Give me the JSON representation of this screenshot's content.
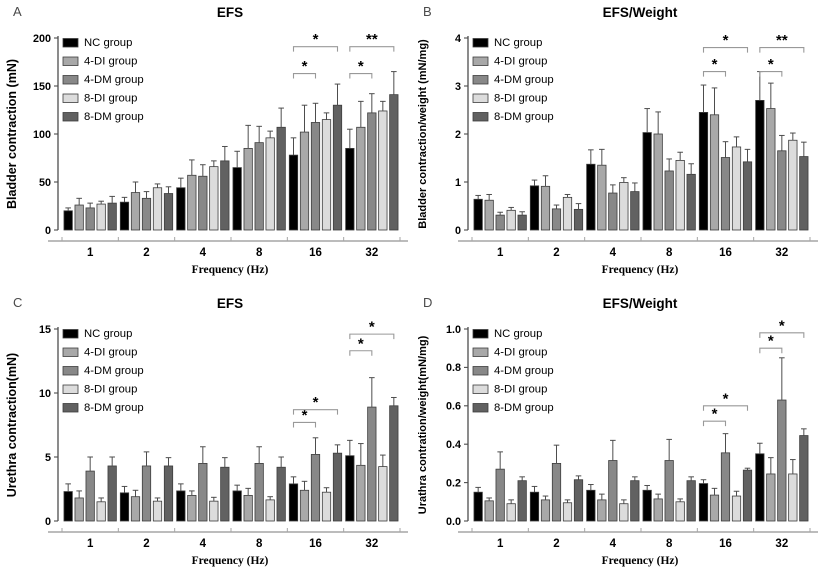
{
  "figure": {
    "groups": [
      "NC group",
      "4-DI group",
      "4-DM group",
      "8-DI group",
      "8-DM group"
    ],
    "group_colors": [
      "#000000",
      "#a8a8a8",
      "#888888",
      "#dcdcdc",
      "#616161"
    ],
    "categories": [
      "1",
      "2",
      "4",
      "8",
      "16",
      "32"
    ],
    "xlabel": "Frequency (Hz)",
    "style_colors": {
      "bar_outline": "#3d3d3d",
      "error_bar": "#4d4d4d",
      "axis": "#4d4d4d",
      "x_offset_line": "#a6a6a6",
      "bracket": "#999999",
      "panel_letter": "#4a4a4a",
      "text": "#000000"
    }
  },
  "chart_data": [
    {
      "panel": "A",
      "type": "bar",
      "title": "EFS",
      "ylabel": "Bladder contraction (mN)",
      "xlabel": "Frequency (Hz)",
      "categories": [
        "1",
        "2",
        "4",
        "8",
        "16",
        "32"
      ],
      "ylim": [
        0,
        200
      ],
      "tick_values": [
        0,
        50,
        100,
        150,
        200
      ],
      "tick_labels": [
        "0",
        "50",
        "100",
        "150",
        "200"
      ],
      "legend_position": "top-left",
      "grid": false,
      "series": [
        {
          "name": "NC group",
          "values": [
            20,
            29,
            44,
            65,
            78,
            85
          ],
          "errors": [
            3,
            5,
            10,
            17,
            18,
            20
          ]
        },
        {
          "name": "4-DI group",
          "values": [
            26,
            39,
            57,
            85,
            102,
            107
          ],
          "errors": [
            7,
            11,
            16,
            24,
            28,
            27
          ]
        },
        {
          "name": "4-DM group",
          "values": [
            23,
            33,
            56,
            91,
            112,
            122
          ],
          "errors": [
            5,
            7,
            12,
            17,
            20,
            20
          ]
        },
        {
          "name": "8-DI group",
          "values": [
            27,
            44,
            66,
            96,
            115,
            124
          ],
          "errors": [
            3,
            4,
            6,
            7,
            7,
            10
          ]
        },
        {
          "name": "8-DM group",
          "values": [
            28,
            38,
            72,
            107,
            130,
            141
          ],
          "errors": [
            7,
            7,
            15,
            20,
            22,
            24
          ]
        }
      ],
      "significance": [
        {
          "category": "16",
          "from_series": "NC group",
          "to_series": "4-DM group",
          "label": "*",
          "y": 163
        },
        {
          "category": "16",
          "from_series": "NC group",
          "to_series": "8-DM group",
          "label": "*",
          "y": 191
        },
        {
          "category": "32",
          "from_series": "NC group",
          "to_series": "4-DM group",
          "label": "*",
          "y": 163
        },
        {
          "category": "32",
          "from_series": "NC group",
          "to_series": "8-DM group",
          "label": "**",
          "y": 191
        }
      ]
    },
    {
      "panel": "B",
      "type": "bar",
      "title": "EFS/Weight",
      "ylabel": "Bladder contraction/weight (mN/mg)",
      "xlabel": "Frequency (Hz)",
      "categories": [
        "1",
        "2",
        "4",
        "8",
        "16",
        "32"
      ],
      "ylim": [
        0,
        4
      ],
      "tick_values": [
        0,
        1,
        2,
        3,
        4
      ],
      "tick_labels": [
        "0",
        "1",
        "2",
        "3",
        "4"
      ],
      "legend_position": "top-left",
      "grid": false,
      "series": [
        {
          "name": "NC group",
          "values": [
            0.64,
            0.92,
            1.37,
            2.03,
            2.45,
            2.7
          ],
          "errors": [
            0.08,
            0.12,
            0.3,
            0.5,
            0.57,
            0.6
          ]
        },
        {
          "name": "4-DI group",
          "values": [
            0.62,
            0.91,
            1.35,
            2.0,
            2.4,
            2.53
          ],
          "errors": [
            0.12,
            0.22,
            0.33,
            0.46,
            0.56,
            0.53
          ]
        },
        {
          "name": "4-DM group",
          "values": [
            0.31,
            0.44,
            0.77,
            1.23,
            1.51,
            1.65
          ],
          "errors": [
            0.06,
            0.08,
            0.17,
            0.25,
            0.33,
            0.32
          ]
        },
        {
          "name": "8-DI group",
          "values": [
            0.41,
            0.68,
            0.99,
            1.45,
            1.73,
            1.87
          ],
          "errors": [
            0.06,
            0.06,
            0.1,
            0.17,
            0.21,
            0.15
          ]
        },
        {
          "name": "8-DM group",
          "values": [
            0.31,
            0.43,
            0.8,
            1.16,
            1.42,
            1.53
          ],
          "errors": [
            0.07,
            0.12,
            0.18,
            0.22,
            0.26,
            0.3
          ]
        }
      ],
      "significance": [
        {
          "category": "16",
          "from_series": "NC group",
          "to_series": "4-DM group",
          "label": "*",
          "y": 3.3
        },
        {
          "category": "16",
          "from_series": "NC group",
          "to_series": "8-DM group",
          "label": "*",
          "y": 3.8
        },
        {
          "category": "32",
          "from_series": "NC group",
          "to_series": "4-DM group",
          "label": "*",
          "y": 3.3
        },
        {
          "category": "32",
          "from_series": "NC group",
          "to_series": "8-DM group",
          "label": "**",
          "y": 3.8
        }
      ]
    },
    {
      "panel": "C",
      "type": "bar",
      "title": "EFS",
      "ylabel": "Urethra contraction(mN)",
      "xlabel": "Frequency (Hz)",
      "categories": [
        "1",
        "2",
        "4",
        "8",
        "16",
        "32"
      ],
      "ylim": [
        0,
        15
      ],
      "tick_values": [
        0,
        5,
        10,
        15
      ],
      "tick_labels": [
        "0",
        "5",
        "10",
        "15"
      ],
      "legend_position": "top-left",
      "grid": false,
      "series": [
        {
          "name": "NC group",
          "values": [
            2.3,
            2.2,
            2.35,
            2.35,
            2.9,
            5.1
          ],
          "errors": [
            0.6,
            0.5,
            0.55,
            0.45,
            0.55,
            1.2
          ]
        },
        {
          "name": "4-DI group",
          "values": [
            1.8,
            1.9,
            2.0,
            2.0,
            2.4,
            4.35
          ],
          "errors": [
            0.55,
            0.5,
            0.35,
            0.55,
            0.7,
            1.7
          ]
        },
        {
          "name": "4-DM group",
          "values": [
            3.9,
            4.3,
            4.5,
            4.5,
            5.2,
            8.9
          ],
          "errors": [
            1.1,
            1.1,
            1.3,
            1.3,
            1.3,
            2.3
          ]
        },
        {
          "name": "8-DI group",
          "values": [
            1.5,
            1.55,
            1.55,
            1.65,
            2.25,
            4.25
          ],
          "errors": [
            0.3,
            0.25,
            0.3,
            0.25,
            0.35,
            0.9
          ]
        },
        {
          "name": "8-DM group",
          "values": [
            4.3,
            4.3,
            4.2,
            4.2,
            5.3,
            9.0
          ],
          "errors": [
            0.7,
            0.65,
            0.75,
            0.8,
            0.65,
            0.65
          ]
        }
      ],
      "significance": [
        {
          "category": "16",
          "from_series": "NC group",
          "to_series": "4-DM group",
          "label": "*",
          "y": 7.7
        },
        {
          "category": "16",
          "from_series": "NC group",
          "to_series": "8-DM group",
          "label": "*",
          "y": 8.7
        },
        {
          "category": "32",
          "from_series": "NC group",
          "to_series": "4-DM group",
          "label": "*",
          "y": 13.3
        },
        {
          "category": "32",
          "from_series": "NC group",
          "to_series": "8-DM group",
          "label": "*",
          "y": 14.6
        }
      ]
    },
    {
      "panel": "D",
      "type": "bar",
      "title": "EFS/Weight",
      "ylabel": "Urathra contration/weight(mN/mg)",
      "xlabel": "Frequency (Hz)",
      "categories": [
        "1",
        "2",
        "4",
        "8",
        "16",
        "32"
      ],
      "ylim": [
        0,
        1.0
      ],
      "tick_values": [
        0,
        0.2,
        0.4,
        0.6,
        0.8,
        1.0
      ],
      "tick_labels": [
        "0.0",
        "0.2",
        "0.4",
        "0.6",
        "0.8",
        "1.0"
      ],
      "legend_position": "top-left",
      "grid": false,
      "series": [
        {
          "name": "NC group",
          "values": [
            0.15,
            0.15,
            0.16,
            0.16,
            0.195,
            0.35
          ],
          "errors": [
            0.025,
            0.03,
            0.03,
            0.025,
            0.02,
            0.055
          ]
        },
        {
          "name": "4-DI group",
          "values": [
            0.105,
            0.11,
            0.11,
            0.115,
            0.135,
            0.245
          ],
          "errors": [
            0.015,
            0.02,
            0.03,
            0.025,
            0.035,
            0.085
          ]
        },
        {
          "name": "4-DM group",
          "values": [
            0.27,
            0.3,
            0.315,
            0.315,
            0.355,
            0.63
          ],
          "errors": [
            0.09,
            0.095,
            0.105,
            0.11,
            0.1,
            0.22
          ]
        },
        {
          "name": "8-DI group",
          "values": [
            0.09,
            0.095,
            0.09,
            0.1,
            0.13,
            0.245
          ],
          "errors": [
            0.02,
            0.015,
            0.02,
            0.015,
            0.025,
            0.075
          ]
        },
        {
          "name": "8-DM group",
          "values": [
            0.21,
            0.215,
            0.21,
            0.21,
            0.265,
            0.445
          ],
          "errors": [
            0.02,
            0.02,
            0.02,
            0.02,
            0.01,
            0.035
          ]
        }
      ],
      "significance": [
        {
          "category": "16",
          "from_series": "NC group",
          "to_series": "4-DM group",
          "label": "*",
          "y": 0.52
        },
        {
          "category": "16",
          "from_series": "NC group",
          "to_series": "8-DM group",
          "label": "*",
          "y": 0.6
        },
        {
          "category": "32",
          "from_series": "NC group",
          "to_series": "4-DM group",
          "label": "*",
          "y": 0.9
        },
        {
          "category": "32",
          "from_series": "NC group",
          "to_series": "8-DM group",
          "label": "*",
          "y": 0.98
        }
      ]
    }
  ]
}
